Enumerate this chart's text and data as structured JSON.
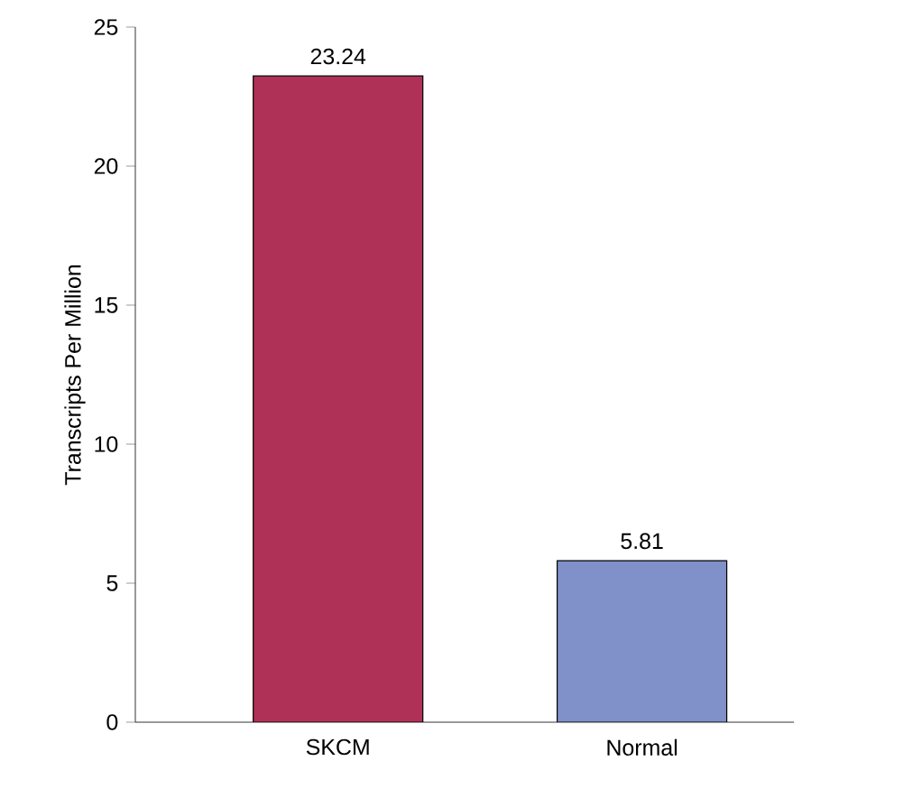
{
  "chart_data": {
    "type": "bar",
    "ylabel": "Transcripts Per Million",
    "categories": [
      "SKCM",
      "Normal"
    ],
    "colors": [
      "#b03157",
      "#8090c8"
    ],
    "values": [
      23.24,
      5.81
    ],
    "ylim": [
      0,
      25
    ],
    "yticks": [
      0,
      5,
      10,
      15,
      20,
      25
    ],
    "data_labels": true
  }
}
